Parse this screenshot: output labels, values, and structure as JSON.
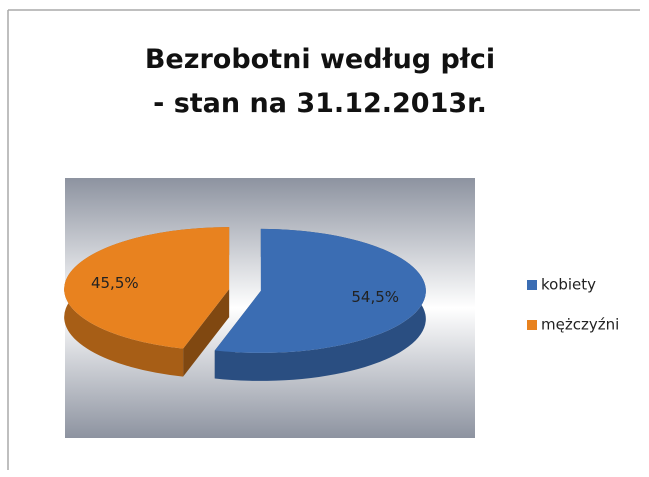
{
  "chart_data": {
    "type": "pie",
    "title": "Bezrobotni według płci",
    "subtitle": "- stan na 31.12.2013r.",
    "categories": [
      "kobiety",
      "mężczyźni"
    ],
    "values": [
      54.5,
      45.5
    ],
    "value_labels": [
      "54,5%",
      "45,5%"
    ],
    "colors": [
      "#3b6db3",
      "#e8821f"
    ],
    "legend": "right"
  }
}
